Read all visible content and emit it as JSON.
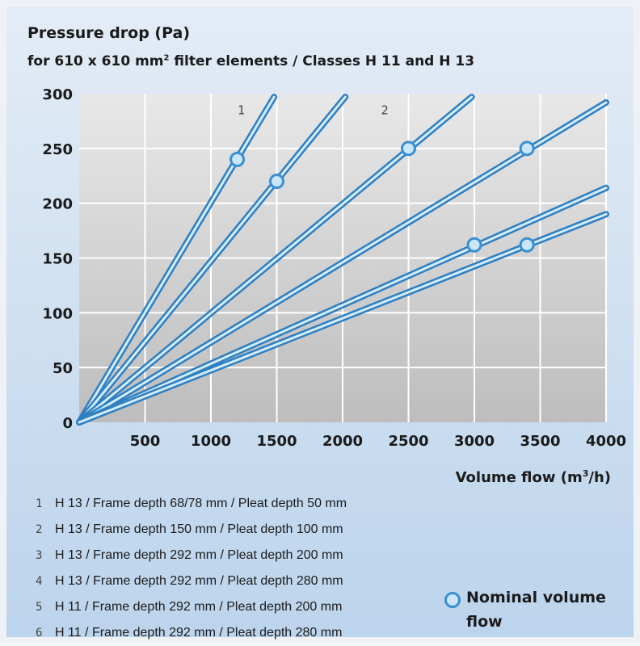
{
  "title": "Pressure drop (Pa)",
  "subtitle_main": "for 610 x 610 mm",
  "subtitle_sup": "2",
  "subtitle_rest": " filter elements / Classes H 11 and H 13",
  "xlabel_main": "Volume flow (m",
  "xlabel_sup": "3",
  "xlabel_rest": "/h)",
  "nominal_label": "Nominal volume flow",
  "colors": {
    "plot_top": "#e8e8e8",
    "plot_bottom": "#bdbdbd",
    "line_outer": "#2f7fc0",
    "line_inner": "#d4ecfa",
    "marker_ring": "#3a8fd0",
    "marker_fill": "#c9e6fa"
  },
  "legend": [
    {
      "num": "1",
      "text": "H 13 / Frame depth 68/78 mm / Pleat depth 50 mm"
    },
    {
      "num": "2",
      "text": "H 13 / Frame depth 150 mm / Pleat depth 100 mm"
    },
    {
      "num": "3",
      "text": "H 13 / Frame depth 292 mm / Pleat depth 200 mm"
    },
    {
      "num": "4",
      "text": "H 13 / Frame depth 292 mm / Pleat depth 280 mm"
    },
    {
      "num": "5",
      "text": "H 11 / Frame depth 292 mm / Pleat depth 200 mm"
    },
    {
      "num": "6",
      "text": "H 11 / Frame depth 292 mm / Pleat depth 280 mm"
    }
  ],
  "chart_data": {
    "type": "line",
    "title": "Pressure drop (Pa)",
    "xlabel": "Volume flow (m3/h)",
    "ylabel": "Pressure drop (Pa)",
    "xlim": [
      0,
      4000
    ],
    "ylim": [
      0,
      300
    ],
    "xticks": [
      500,
      1000,
      1500,
      2000,
      2500,
      3000,
      3500,
      4000
    ],
    "yticks": [
      0,
      50,
      100,
      150,
      200,
      250,
      300
    ],
    "grid": true,
    "series": [
      {
        "name": "1",
        "x": [
          0,
          1480
        ],
        "y": [
          0,
          297
        ],
        "nominal": {
          "x": 1200,
          "y": 240
        }
      },
      {
        "name": "",
        "x": [
          0,
          2020
        ],
        "y": [
          0,
          297
        ],
        "nominal": {
          "x": 1500,
          "y": 220
        }
      },
      {
        "name": "2",
        "x": [
          0,
          2980
        ],
        "y": [
          0,
          297
        ],
        "nominal": {
          "x": 2500,
          "y": 250
        }
      },
      {
        "name": "",
        "x": [
          0,
          4000
        ],
        "y": [
          0,
          292
        ],
        "nominal": {
          "x": 3400,
          "y": 250
        }
      },
      {
        "name": "",
        "x": [
          0,
          4000
        ],
        "y": [
          0,
          214
        ],
        "nominal": {
          "x": 3000,
          "y": 162
        }
      },
      {
        "name": "",
        "x": [
          0,
          4000
        ],
        "y": [
          0,
          190
        ],
        "nominal": {
          "x": 3400,
          "y": 162
        }
      }
    ]
  }
}
